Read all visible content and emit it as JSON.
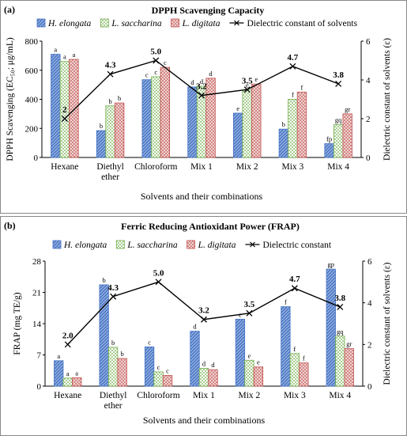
{
  "chart_data": [
    {
      "type": "bar",
      "panel_label": "(a)",
      "title": "DPPH Scavenging Capacity",
      "xlabel": "Solvents and their combinations",
      "ylabel": "DPPH Scavenging (EC₅₀; μg/mL)",
      "y2label": "Dielectric constant of solvents (ε)",
      "ylim": [
        0,
        800
      ],
      "yticks": [
        0,
        200,
        400,
        600,
        800
      ],
      "y2lim": [
        0,
        6
      ],
      "y2ticks": [
        0,
        2,
        4,
        6
      ],
      "categories": [
        "Hexane",
        "Diethyl ether",
        "Chloroform",
        "Mix 1",
        "Mix 2",
        "Mix 3",
        "Mix 4"
      ],
      "series": [
        {
          "name": "H. elongata",
          "color": "#4472C4",
          "pattern": "diagonal-lines",
          "values": [
            710,
            185,
            535,
            485,
            305,
            195,
            95
          ],
          "labels": [
            "a",
            "b",
            "c",
            "d",
            "e",
            "b",
            "fp"
          ]
        },
        {
          "name": "L. saccharina",
          "color": "#70AD47",
          "pattern": "checker",
          "values": [
            660,
            355,
            555,
            490,
            465,
            400,
            225
          ],
          "labels": [
            "a",
            "b",
            "c",
            "d",
            "e",
            "f",
            "gq"
          ]
        },
        {
          "name": "L. digitata",
          "color": "#C0504D",
          "pattern": "dots",
          "values": [
            675,
            375,
            620,
            545,
            505,
            450,
            300
          ],
          "labels": [
            "a",
            "b",
            "c",
            "d",
            "e",
            "f",
            "gr"
          ]
        }
      ],
      "line": {
        "name": "Dielectric constant of solvents",
        "color": "#000000",
        "marker": "x",
        "values": [
          2.0,
          4.3,
          5.0,
          3.2,
          3.5,
          4.7,
          3.8
        ],
        "labels": [
          "2",
          "4.3",
          "5.0",
          "3.2",
          "3.5",
          "4.7",
          "3.8"
        ]
      },
      "legend": "top"
    },
    {
      "type": "bar",
      "panel_label": "(b)",
      "title": "Ferric Reducing Antioxidant Power (FRAP)",
      "xlabel": "Solvents and their combinations",
      "ylabel": "FRAP (mg TE/g)",
      "y2label": "Dielectric constant of solvents (ε)",
      "ylim": [
        0,
        28
      ],
      "yticks": [
        0,
        7,
        14,
        21,
        28
      ],
      "y2lim": [
        0,
        6
      ],
      "y2ticks": [
        0,
        2,
        4,
        6
      ],
      "categories": [
        "Hexane",
        "Diethyl ether",
        "Chloroform",
        "Mix 1",
        "Mix 2",
        "Mix 3",
        "Mix 4"
      ],
      "series": [
        {
          "name": "H. elongata",
          "color": "#4472C4",
          "pattern": "diagonal-lines",
          "values": [
            5.7,
            22.7,
            8.8,
            12.3,
            15.0,
            17.8,
            26.2
          ],
          "labels": [
            "a",
            "b",
            "c",
            "d",
            "e",
            "f",
            "gp"
          ]
        },
        {
          "name": "L. saccharina",
          "color": "#70AD47",
          "pattern": "checker",
          "values": [
            1.8,
            8.7,
            3.2,
            4.0,
            5.8,
            7.3,
            11.2
          ],
          "labels": [
            "a",
            "b",
            "c",
            "d",
            "e",
            "f",
            "gq"
          ]
        },
        {
          "name": "L. digitata",
          "color": "#C0504D",
          "pattern": "dots",
          "values": [
            1.9,
            6.2,
            2.4,
            3.7,
            4.3,
            5.2,
            8.4
          ],
          "labels": [
            "a",
            "b",
            "c",
            "d",
            "e",
            "f",
            "gr"
          ]
        }
      ],
      "line": {
        "name": "Dielectric constant",
        "color": "#000000",
        "marker": "x",
        "values": [
          2.0,
          4.3,
          5.0,
          3.2,
          3.5,
          4.7,
          3.8
        ],
        "labels": [
          "2.0",
          "4.3",
          "5.0",
          "3.2",
          "3.5",
          "4.7",
          "3.8"
        ]
      },
      "legend": "top"
    }
  ]
}
